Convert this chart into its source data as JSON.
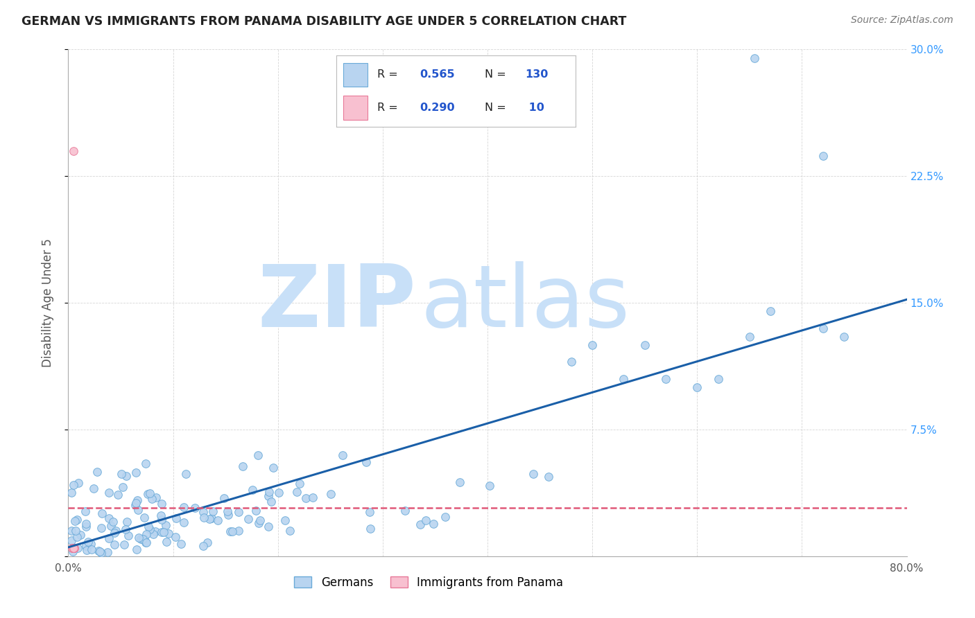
{
  "title": "GERMAN VS IMMIGRANTS FROM PANAMA DISABILITY AGE UNDER 5 CORRELATION CHART",
  "source": "Source: ZipAtlas.com",
  "ylabel": "Disability Age Under 5",
  "xlim": [
    0,
    0.8
  ],
  "ylim": [
    0,
    0.3
  ],
  "xtick_vals": [
    0.0,
    0.1,
    0.2,
    0.3,
    0.4,
    0.5,
    0.6,
    0.7,
    0.8
  ],
  "xtick_labels": [
    "0.0%",
    "",
    "",
    "",
    "",
    "",
    "",
    "",
    "80.0%"
  ],
  "ytick_vals": [
    0.0,
    0.075,
    0.15,
    0.225,
    0.3
  ],
  "ytick_labels_right": [
    "",
    "7.5%",
    "15.0%",
    "22.5%",
    "30.0%"
  ],
  "blue_R": 0.565,
  "blue_N": 130,
  "pink_R": 0.29,
  "pink_N": 10,
  "blue_color": "#b8d4f0",
  "blue_edge_color": "#6aaad8",
  "blue_line_color": "#1a5fa8",
  "pink_color": "#f8c0d0",
  "pink_edge_color": "#e87898",
  "pink_line_color": "#e05878",
  "background_color": "#ffffff",
  "grid_color": "#cccccc",
  "title_color": "#222222",
  "source_color": "#777777",
  "legend_R_N_color": "#2255cc",
  "legend_N_val_color": "#cc3333"
}
